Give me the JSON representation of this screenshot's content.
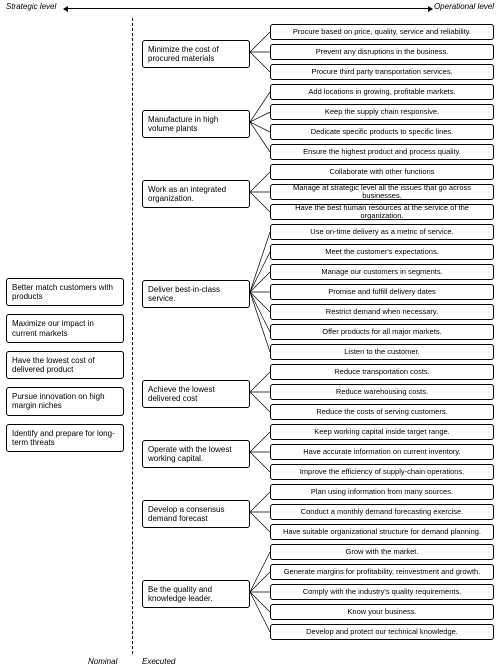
{
  "header": {
    "left": "Strategic level",
    "right": "Operational level"
  },
  "footer": {
    "nominal": "Nominal",
    "executed": "Executed"
  },
  "strategic": [
    "Better match customers with products",
    "Maximize our impact in current markets",
    "Have the lowest cost of delivered product",
    "Pursue innovation on high margin niches",
    "Identify and prepare for long-term threats"
  ],
  "layout": {
    "rightStartY": 24,
    "rowStep": 20,
    "midX": 142,
    "midW": 108,
    "rightX": 270,
    "rightW": 224,
    "connectorFromX": 250,
    "connectorToX": 270,
    "boxH": 16
  },
  "groups": [
    {
      "label": "Minimize the cost of procured materials",
      "tasks": [
        "Procure based on price, quality, service and reliability.",
        "Prevent any disruptions in the business.",
        "Procure third party transportation services."
      ]
    },
    {
      "label": "Manufacture in high volume plants",
      "tasks": [
        "Add locations in growing, profitable markets.",
        "Keep the supply chain responsive.",
        "Dedicate specific products to specific lines.",
        "Ensure the highest product and process quality."
      ]
    },
    {
      "label": "Work as an integrated organization.",
      "tasks": [
        "Collaborate with other functions",
        "Manage at strategic level all the issues that go across businesses.",
        "Have the best human resources at the service of the organization."
      ]
    },
    {
      "label": "Deliver best-in-class service.",
      "tasks": [
        "Use on-time delivery as a metric of service.",
        "Meet the customer's expectations.",
        "Manage our customers in segments.",
        "Promise  and fulfill delivery dates",
        "Restrict demand when necessary.",
        "Offer products for all major markets.",
        "Listen to the customer."
      ]
    },
    {
      "label": "Achieve the lowest delivered cost",
      "tasks": [
        "Reduce transportation costs.",
        "Reduce warehousing costs.",
        "Reduce the costs of serving customers."
      ]
    },
    {
      "label": "Operate with the lowest working capital.",
      "tasks": [
        "Keep working capital inside target range.",
        "Have accurate information on current inventory.",
        "Improve the efficiency of supply-chain operations."
      ]
    },
    {
      "label": "Develop a consensus demand forecast",
      "tasks": [
        "Plan using information from many sources.",
        "Conduct a monthly demand forecasting exercise.",
        "Have  suitable organizational structure for demand planning."
      ]
    },
    {
      "label": "Be the quality and knowledge leader.",
      "tasks": [
        "Grow with the market.",
        "Generate margins for profitability, reinvestment and growth.",
        "Comply with the industry's quality requirements.",
        "Know your business.",
        "Develop and protect our technical knowledge."
      ]
    }
  ]
}
